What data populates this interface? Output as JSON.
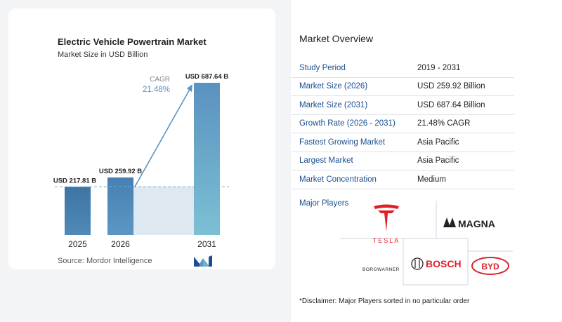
{
  "chart_data": {
    "type": "bar",
    "title": "Electric Vehicle Powertrain Market",
    "subtitle": "Market Size in USD Billion",
    "categories": [
      "2025",
      "2026",
      "2031"
    ],
    "values": [
      217.81,
      259.92,
      687.64
    ],
    "value_labels": [
      "USD 217.81 B",
      "USD 259.92 B",
      "USD 687.64 B"
    ],
    "ylim": [
      0,
      700
    ],
    "cagr_label": "CAGR",
    "cagr_value": "21.48%",
    "colors": {
      "bar_light": "#3f79a8",
      "bar_mid": "#5b95c0",
      "bar_dark": "#6fb0cf",
      "shade": "#dde8f0",
      "arrow": "#5b95c0",
      "reference_line": "#6fb0cf"
    },
    "grid": false
  },
  "source": "Source: Mordor Intelligence",
  "overview": {
    "title": "Market Overview",
    "rows": [
      {
        "key": "Study Period",
        "value": "2019 - 2031"
      },
      {
        "key": "Market Size (2026)",
        "value": "USD 259.92 Billion"
      },
      {
        "key": "Market Size (2031)",
        "value": "USD 687.64 Billion"
      },
      {
        "key": "Growth Rate (2026 - 2031)",
        "value": "21.48% CAGR"
      },
      {
        "key": "Fastest Growing Market",
        "value": "Asia Pacific"
      },
      {
        "key": "Largest Market",
        "value": "Asia Pacific"
      },
      {
        "key": "Market Concentration",
        "value": "Medium"
      }
    ],
    "players_label": "Major Players",
    "players": [
      "TESLA",
      "MAGNA",
      "BORGWARNER",
      "BOSCH",
      "BYD"
    ],
    "disclaimer": "*Disclaimer: Major Players sorted in no particular order"
  },
  "accent": "#1b4f8f"
}
